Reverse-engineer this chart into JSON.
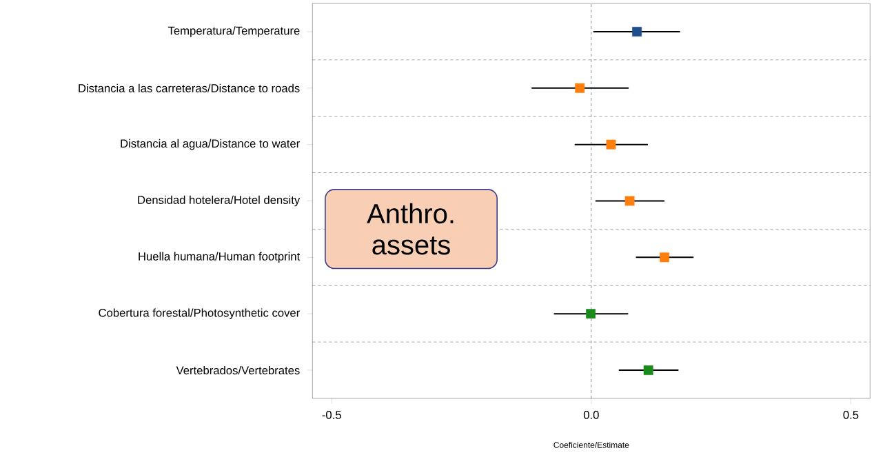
{
  "chart_data": {
    "type": "scatter",
    "orientation": "horizontal",
    "marker": "square",
    "xlabel": "Coeficiente/Estimate",
    "categories": [
      "Temperatura/Temperature",
      "Distancia a las carreteras/Distance to roads",
      "Distancia al agua/Distance to water",
      "Densidad hotelera/Hotel density",
      "Huella humana/Human footprint",
      "Cobertura forestal/Photosynthetic cover",
      "Vertebrados/Vertebrates"
    ],
    "values": [
      0.088,
      -0.022,
      0.038,
      0.074,
      0.141,
      -0.001,
      0.11
    ],
    "errors": [
      [
        0.004,
        0.171
      ],
      [
        -0.115,
        0.072
      ],
      [
        -0.032,
        0.109
      ],
      [
        0.008,
        0.141
      ],
      [
        0.086,
        0.197
      ],
      [
        -0.072,
        0.071
      ],
      [
        0.053,
        0.168
      ]
    ],
    "colors": [
      "#1f4e8c",
      "#ff7f0e",
      "#ff7f0e",
      "#ff7f0e",
      "#ff7f0e",
      "#1a8a1a",
      "#1a8a1a"
    ],
    "xlim": [
      -0.537,
      0.537
    ],
    "xticks": [
      {
        "value": -0.5,
        "label": "-0.5"
      },
      {
        "value": 0,
        "label": "0.0"
      },
      {
        "value": 0.5,
        "label": "0.5"
      }
    ],
    "grid": "y",
    "ref_lines": [
      {
        "axis": "x",
        "value": 0,
        "line_style": "dashed"
      }
    ],
    "annotations": [
      "Anthro. assets"
    ]
  }
}
